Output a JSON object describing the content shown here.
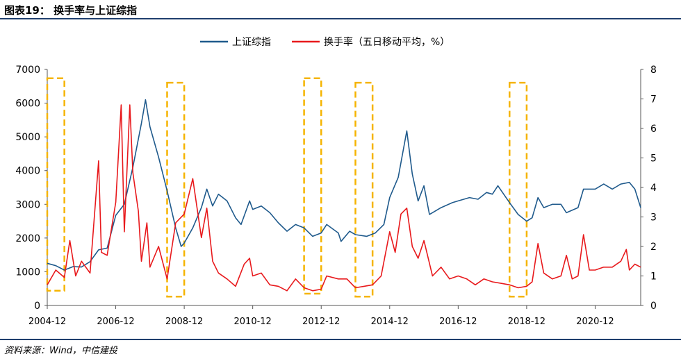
{
  "figure_title": "图表19： 换手率与上证综指",
  "source": "资料来源：Wind，中信建投",
  "chart_data": {
    "type": "line",
    "legend_position": "top-center",
    "grid": false,
    "x_tick_labels": [
      "2004-12",
      "2006-12",
      "2008-12",
      "2010-12",
      "2012-12",
      "2014-12",
      "2016-12",
      "2018-12",
      "2020-12"
    ],
    "x_ticks": [
      2004.92,
      2006.92,
      2008.92,
      2010.92,
      2012.92,
      2014.92,
      2016.92,
      2018.92,
      2020.92
    ],
    "xlim": [
      2004.92,
      2022.25
    ],
    "y_left": {
      "lim": [
        0,
        7000
      ],
      "ticks": [
        0,
        1000,
        2000,
        3000,
        4000,
        5000,
        6000,
        7000
      ]
    },
    "y_right": {
      "lim": [
        0,
        8
      ],
      "ticks": [
        0,
        1,
        2,
        3,
        4,
        5,
        6,
        7,
        8
      ]
    },
    "series": [
      {
        "name": "上证综指",
        "axis": "left",
        "color": "#1f5a8c",
        "points": [
          [
            2004.92,
            1250
          ],
          [
            2005.17,
            1180
          ],
          [
            2005.42,
            1050
          ],
          [
            2005.67,
            1150
          ],
          [
            2005.92,
            1140
          ],
          [
            2006.17,
            1300
          ],
          [
            2006.42,
            1650
          ],
          [
            2006.67,
            1700
          ],
          [
            2006.92,
            2675
          ],
          [
            2007.17,
            3000
          ],
          [
            2007.42,
            4100
          ],
          [
            2007.67,
            5400
          ],
          [
            2007.79,
            6100
          ],
          [
            2007.92,
            5300
          ],
          [
            2008.17,
            4400
          ],
          [
            2008.42,
            3400
          ],
          [
            2008.67,
            2300
          ],
          [
            2008.83,
            1750
          ],
          [
            2008.92,
            1850
          ],
          [
            2009.17,
            2300
          ],
          [
            2009.42,
            2900
          ],
          [
            2009.58,
            3450
          ],
          [
            2009.75,
            2950
          ],
          [
            2009.92,
            3300
          ],
          [
            2010.17,
            3100
          ],
          [
            2010.42,
            2600
          ],
          [
            2010.58,
            2400
          ],
          [
            2010.83,
            3100
          ],
          [
            2010.92,
            2850
          ],
          [
            2011.17,
            2950
          ],
          [
            2011.42,
            2750
          ],
          [
            2011.67,
            2450
          ],
          [
            2011.92,
            2200
          ],
          [
            2012.17,
            2400
          ],
          [
            2012.42,
            2300
          ],
          [
            2012.67,
            2050
          ],
          [
            2012.92,
            2150
          ],
          [
            2013.08,
            2400
          ],
          [
            2013.42,
            2150
          ],
          [
            2013.5,
            1900
          ],
          [
            2013.75,
            2200
          ],
          [
            2013.92,
            2100
          ],
          [
            2014.25,
            2050
          ],
          [
            2014.5,
            2150
          ],
          [
            2014.75,
            2400
          ],
          [
            2014.92,
            3200
          ],
          [
            2015.17,
            3800
          ],
          [
            2015.42,
            5178
          ],
          [
            2015.58,
            3900
          ],
          [
            2015.75,
            3100
          ],
          [
            2015.92,
            3550
          ],
          [
            2016.08,
            2700
          ],
          [
            2016.42,
            2900
          ],
          [
            2016.75,
            3050
          ],
          [
            2016.92,
            3100
          ],
          [
            2017.25,
            3200
          ],
          [
            2017.5,
            3150
          ],
          [
            2017.75,
            3350
          ],
          [
            2017.92,
            3300
          ],
          [
            2018.08,
            3550
          ],
          [
            2018.42,
            3050
          ],
          [
            2018.67,
            2700
          ],
          [
            2018.92,
            2500
          ],
          [
            2019.08,
            2600
          ],
          [
            2019.25,
            3200
          ],
          [
            2019.42,
            2900
          ],
          [
            2019.67,
            3000
          ],
          [
            2019.92,
            3000
          ],
          [
            2020.08,
            2750
          ],
          [
            2020.42,
            2900
          ],
          [
            2020.58,
            3450
          ],
          [
            2020.92,
            3450
          ],
          [
            2021.17,
            3600
          ],
          [
            2021.42,
            3450
          ],
          [
            2021.67,
            3600
          ],
          [
            2021.92,
            3650
          ],
          [
            2022.08,
            3450
          ],
          [
            2022.25,
            2900
          ]
        ]
      },
      {
        "name": "换手率（五日移动平均，%）",
        "axis": "right",
        "color": "#e8191c",
        "points": [
          [
            2004.92,
            0.7
          ],
          [
            2005.17,
            1.2
          ],
          [
            2005.42,
            0.95
          ],
          [
            2005.58,
            2.2
          ],
          [
            2005.75,
            1.0
          ],
          [
            2005.92,
            1.5
          ],
          [
            2006.17,
            1.1
          ],
          [
            2006.42,
            4.9
          ],
          [
            2006.5,
            1.8
          ],
          [
            2006.67,
            1.7
          ],
          [
            2006.92,
            3.5
          ],
          [
            2007.08,
            6.8
          ],
          [
            2007.17,
            2.5
          ],
          [
            2007.33,
            6.8
          ],
          [
            2007.42,
            4.5
          ],
          [
            2007.58,
            3.2
          ],
          [
            2007.67,
            1.5
          ],
          [
            2007.83,
            2.8
          ],
          [
            2007.92,
            1.3
          ],
          [
            2008.17,
            2.0
          ],
          [
            2008.42,
            0.9
          ],
          [
            2008.67,
            2.8
          ],
          [
            2008.92,
            3.1
          ],
          [
            2009.17,
            4.3
          ],
          [
            2009.42,
            2.3
          ],
          [
            2009.58,
            3.3
          ],
          [
            2009.75,
            1.5
          ],
          [
            2009.92,
            1.1
          ],
          [
            2010.17,
            0.9
          ],
          [
            2010.42,
            0.65
          ],
          [
            2010.67,
            1.4
          ],
          [
            2010.83,
            1.6
          ],
          [
            2010.92,
            1.0
          ],
          [
            2011.17,
            1.1
          ],
          [
            2011.42,
            0.7
          ],
          [
            2011.67,
            0.65
          ],
          [
            2011.92,
            0.5
          ],
          [
            2012.17,
            0.9
          ],
          [
            2012.42,
            0.6
          ],
          [
            2012.67,
            0.5
          ],
          [
            2012.92,
            0.55
          ],
          [
            2013.08,
            1.0
          ],
          [
            2013.42,
            0.9
          ],
          [
            2013.67,
            0.9
          ],
          [
            2013.92,
            0.6
          ],
          [
            2014.17,
            0.65
          ],
          [
            2014.42,
            0.7
          ],
          [
            2014.67,
            1.0
          ],
          [
            2014.92,
            2.5
          ],
          [
            2015.08,
            1.8
          ],
          [
            2015.25,
            3.1
          ],
          [
            2015.42,
            3.3
          ],
          [
            2015.58,
            2.0
          ],
          [
            2015.75,
            1.6
          ],
          [
            2015.92,
            2.2
          ],
          [
            2016.17,
            1.0
          ],
          [
            2016.42,
            1.3
          ],
          [
            2016.67,
            0.9
          ],
          [
            2016.92,
            1.0
          ],
          [
            2017.17,
            0.9
          ],
          [
            2017.42,
            0.7
          ],
          [
            2017.67,
            0.9
          ],
          [
            2017.92,
            0.8
          ],
          [
            2018.17,
            0.75
          ],
          [
            2018.42,
            0.7
          ],
          [
            2018.67,
            0.6
          ],
          [
            2018.92,
            0.65
          ],
          [
            2019.08,
            0.8
          ],
          [
            2019.25,
            2.1
          ],
          [
            2019.42,
            1.1
          ],
          [
            2019.67,
            0.9
          ],
          [
            2019.92,
            1.0
          ],
          [
            2020.08,
            1.7
          ],
          [
            2020.25,
            0.9
          ],
          [
            2020.42,
            1.0
          ],
          [
            2020.58,
            2.4
          ],
          [
            2020.75,
            1.2
          ],
          [
            2020.92,
            1.2
          ],
          [
            2021.17,
            1.3
          ],
          [
            2021.42,
            1.3
          ],
          [
            2021.67,
            1.5
          ],
          [
            2021.83,
            1.9
          ],
          [
            2021.92,
            1.2
          ],
          [
            2022.08,
            1.4
          ],
          [
            2022.25,
            1.3
          ]
        ]
      }
    ],
    "highlight_periods": [
      {
        "x": [
          2004.92,
          2005.42
        ],
        "y": [
          0.5,
          7.7
        ],
        "color": "#f5b400"
      },
      {
        "x": [
          2008.42,
          2008.92
        ],
        "y": [
          0.3,
          7.55
        ],
        "color": "#f5b400"
      },
      {
        "x": [
          2012.42,
          2012.92
        ],
        "y": [
          0.4,
          7.7
        ],
        "color": "#f5b400"
      },
      {
        "x": [
          2013.92,
          2014.42
        ],
        "y": [
          0.3,
          7.55
        ],
        "color": "#f5b400"
      },
      {
        "x": [
          2018.42,
          2018.92
        ],
        "y": [
          0.3,
          7.55
        ],
        "color": "#f5b400"
      }
    ]
  }
}
